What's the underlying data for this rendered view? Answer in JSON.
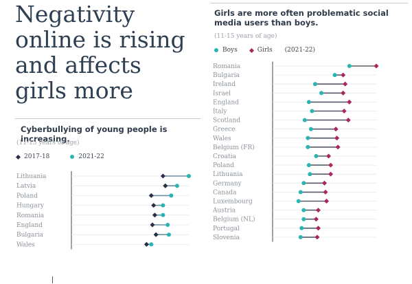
{
  "headline": {
    "lines": [
      "Negativity",
      "online is rising",
      "and affects",
      "girls more"
    ]
  },
  "left": {
    "title": "Cyberbullying of young people is increasing.",
    "note": "(11-15 years of age)",
    "legend": [
      {
        "label": "2017-18",
        "color": "#2b2f45",
        "shape": "diamond"
      },
      {
        "label": "2021-22",
        "color": "#2bb5b2",
        "shape": "dot"
      }
    ]
  },
  "right": {
    "title_line1": "Girls are more often problematic social",
    "title_line2": "media users than boys.",
    "note": "(11-15 years of age)",
    "legend": [
      {
        "label": "Boys",
        "color": "#2bb5b2",
        "shape": "dot"
      },
      {
        "label": "Girls",
        "color": "#a8275e",
        "shape": "diamond"
      },
      {
        "label": "(2021-22)",
        "color": "",
        "shape": "none"
      }
    ]
  },
  "chart_data": [
    {
      "type": "dot",
      "title": "Cyberbullying of young people is increasing.",
      "categories": [
        "Lithuania",
        "Latvia",
        "Poland",
        "Hungary",
        "Romania",
        "England",
        "Bulgaria",
        "Wales"
      ],
      "series": [
        {
          "name": "2017-18",
          "values": [
            0.78,
            0.8,
            0.68,
            0.7,
            0.71,
            0.69,
            0.72,
            0.64
          ]
        },
        {
          "name": "2021-22",
          "values": [
            1.0,
            0.9,
            0.85,
            0.78,
            0.78,
            0.82,
            0.83,
            0.68
          ]
        }
      ],
      "xlim": [
        0,
        1
      ]
    },
    {
      "type": "dot",
      "title": "Girls are more often problematic social media users than boys.",
      "categories": [
        "Romania",
        "Bulgaria",
        "Ireland",
        "Israel",
        "England",
        "Italy",
        "Scotland",
        "Greece",
        "Wales",
        "Belgium (FR)",
        "Croatia",
        "Poland",
        "Lithuania",
        "Germany",
        "Canada",
        "Luxembourg",
        "Austria",
        "Belgium (NL)",
        "Portugal",
        "Slovenia"
      ],
      "series": [
        {
          "name": "Boys",
          "values": [
            0.74,
            0.6,
            0.41,
            0.47,
            0.35,
            0.38,
            0.31,
            0.37,
            0.34,
            0.34,
            0.42,
            0.35,
            0.36,
            0.3,
            0.27,
            0.25,
            0.3,
            0.3,
            0.28,
            0.27
          ]
        },
        {
          "name": "Girls",
          "values": [
            1.0,
            0.68,
            0.7,
            0.68,
            0.74,
            0.69,
            0.73,
            0.61,
            0.62,
            0.63,
            0.54,
            0.56,
            0.56,
            0.5,
            0.51,
            0.52,
            0.44,
            0.42,
            0.44,
            0.43
          ]
        }
      ],
      "xlim": [
        0,
        1
      ]
    }
  ]
}
